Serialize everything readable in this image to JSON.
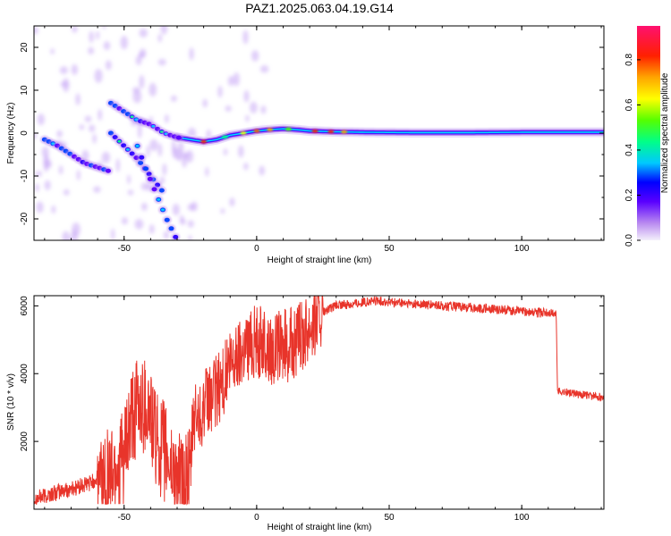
{
  "title": "PAZ1.2025.063.04.19.G14",
  "chart_data": [
    {
      "type": "heatmap",
      "xlabel": "Height of straight line (km)",
      "ylabel": "Frequency (Hz)",
      "xlim": [
        -84,
        131
      ],
      "ylim": [
        -25,
        25
      ],
      "xticks": [
        -50,
        0,
        50,
        100
      ],
      "yticks": [
        -20,
        -10,
        0,
        10,
        20
      ],
      "colorbar": {
        "label": "Normalized spectral amplitude",
        "range": [
          0,
          0.95
        ],
        "ticks": [
          0.0,
          0.2,
          0.4,
          0.6,
          0.8
        ]
      },
      "ridges": [
        {
          "x": [
            -80,
            -75,
            -70,
            -65,
            -60,
            -55
          ],
          "y": [
            -1.5,
            -3,
            -5,
            -7,
            -8,
            -9
          ]
        },
        {
          "x": [
            -55,
            -50,
            -45,
            -40,
            -35,
            -30,
            -25,
            -20,
            -15,
            -10,
            -5,
            0,
            5,
            10,
            15,
            20,
            30,
            40,
            60,
            80,
            100,
            131
          ],
          "y": [
            7,
            5,
            3,
            2,
            0,
            -1,
            -1.5,
            -2,
            -1.5,
            -0.5,
            0,
            0.5,
            0.8,
            1,
            0.8,
            0.5,
            0.3,
            0.2,
            0.1,
            0.1,
            0.2,
            0.2
          ]
        },
        {
          "x": [
            -55,
            -50,
            -45,
            -40,
            -35
          ],
          "y": [
            0,
            -3,
            -6,
            -10,
            -14
          ]
        },
        {
          "x": [
            -45,
            -42,
            -38,
            -34,
            -30
          ],
          "y": [
            -3,
            -8,
            -14,
            -20,
            -25
          ]
        }
      ]
    },
    {
      "type": "line",
      "xlabel": "Height of straight line (km)",
      "ylabel": "SNR (10 * v/v)",
      "xlim": [
        -84,
        131
      ],
      "ylim": [
        0,
        6300
      ],
      "xticks": [
        -50,
        0,
        50,
        100
      ],
      "yticks": [
        2000,
        4000,
        6000
      ],
      "series": [
        {
          "color": "#e8342a",
          "x": [
            -84,
            -75,
            -65,
            -60,
            -55,
            -50,
            -48,
            -45,
            -42,
            -40,
            -38,
            -35,
            -32,
            -30,
            -28,
            -25,
            -24,
            -20,
            -15,
            -10,
            -5,
            0,
            5,
            10,
            15,
            20,
            25,
            30,
            35,
            40,
            45,
            50,
            60,
            70,
            80,
            90,
            100,
            105,
            113,
            113.5,
            120,
            131
          ],
          "y": [
            300,
            500,
            700,
            900,
            1100,
            1500,
            2300,
            3000,
            3100,
            2800,
            2000,
            1700,
            1200,
            900,
            700,
            900,
            2600,
            3000,
            3500,
            4200,
            4800,
            5000,
            4700,
            4800,
            4900,
            5500,
            5800,
            6000,
            6050,
            6100,
            6150,
            6100,
            6050,
            6000,
            5950,
            5900,
            5850,
            5800,
            5780,
            3500,
            3400,
            3300
          ]
        }
      ]
    }
  ]
}
